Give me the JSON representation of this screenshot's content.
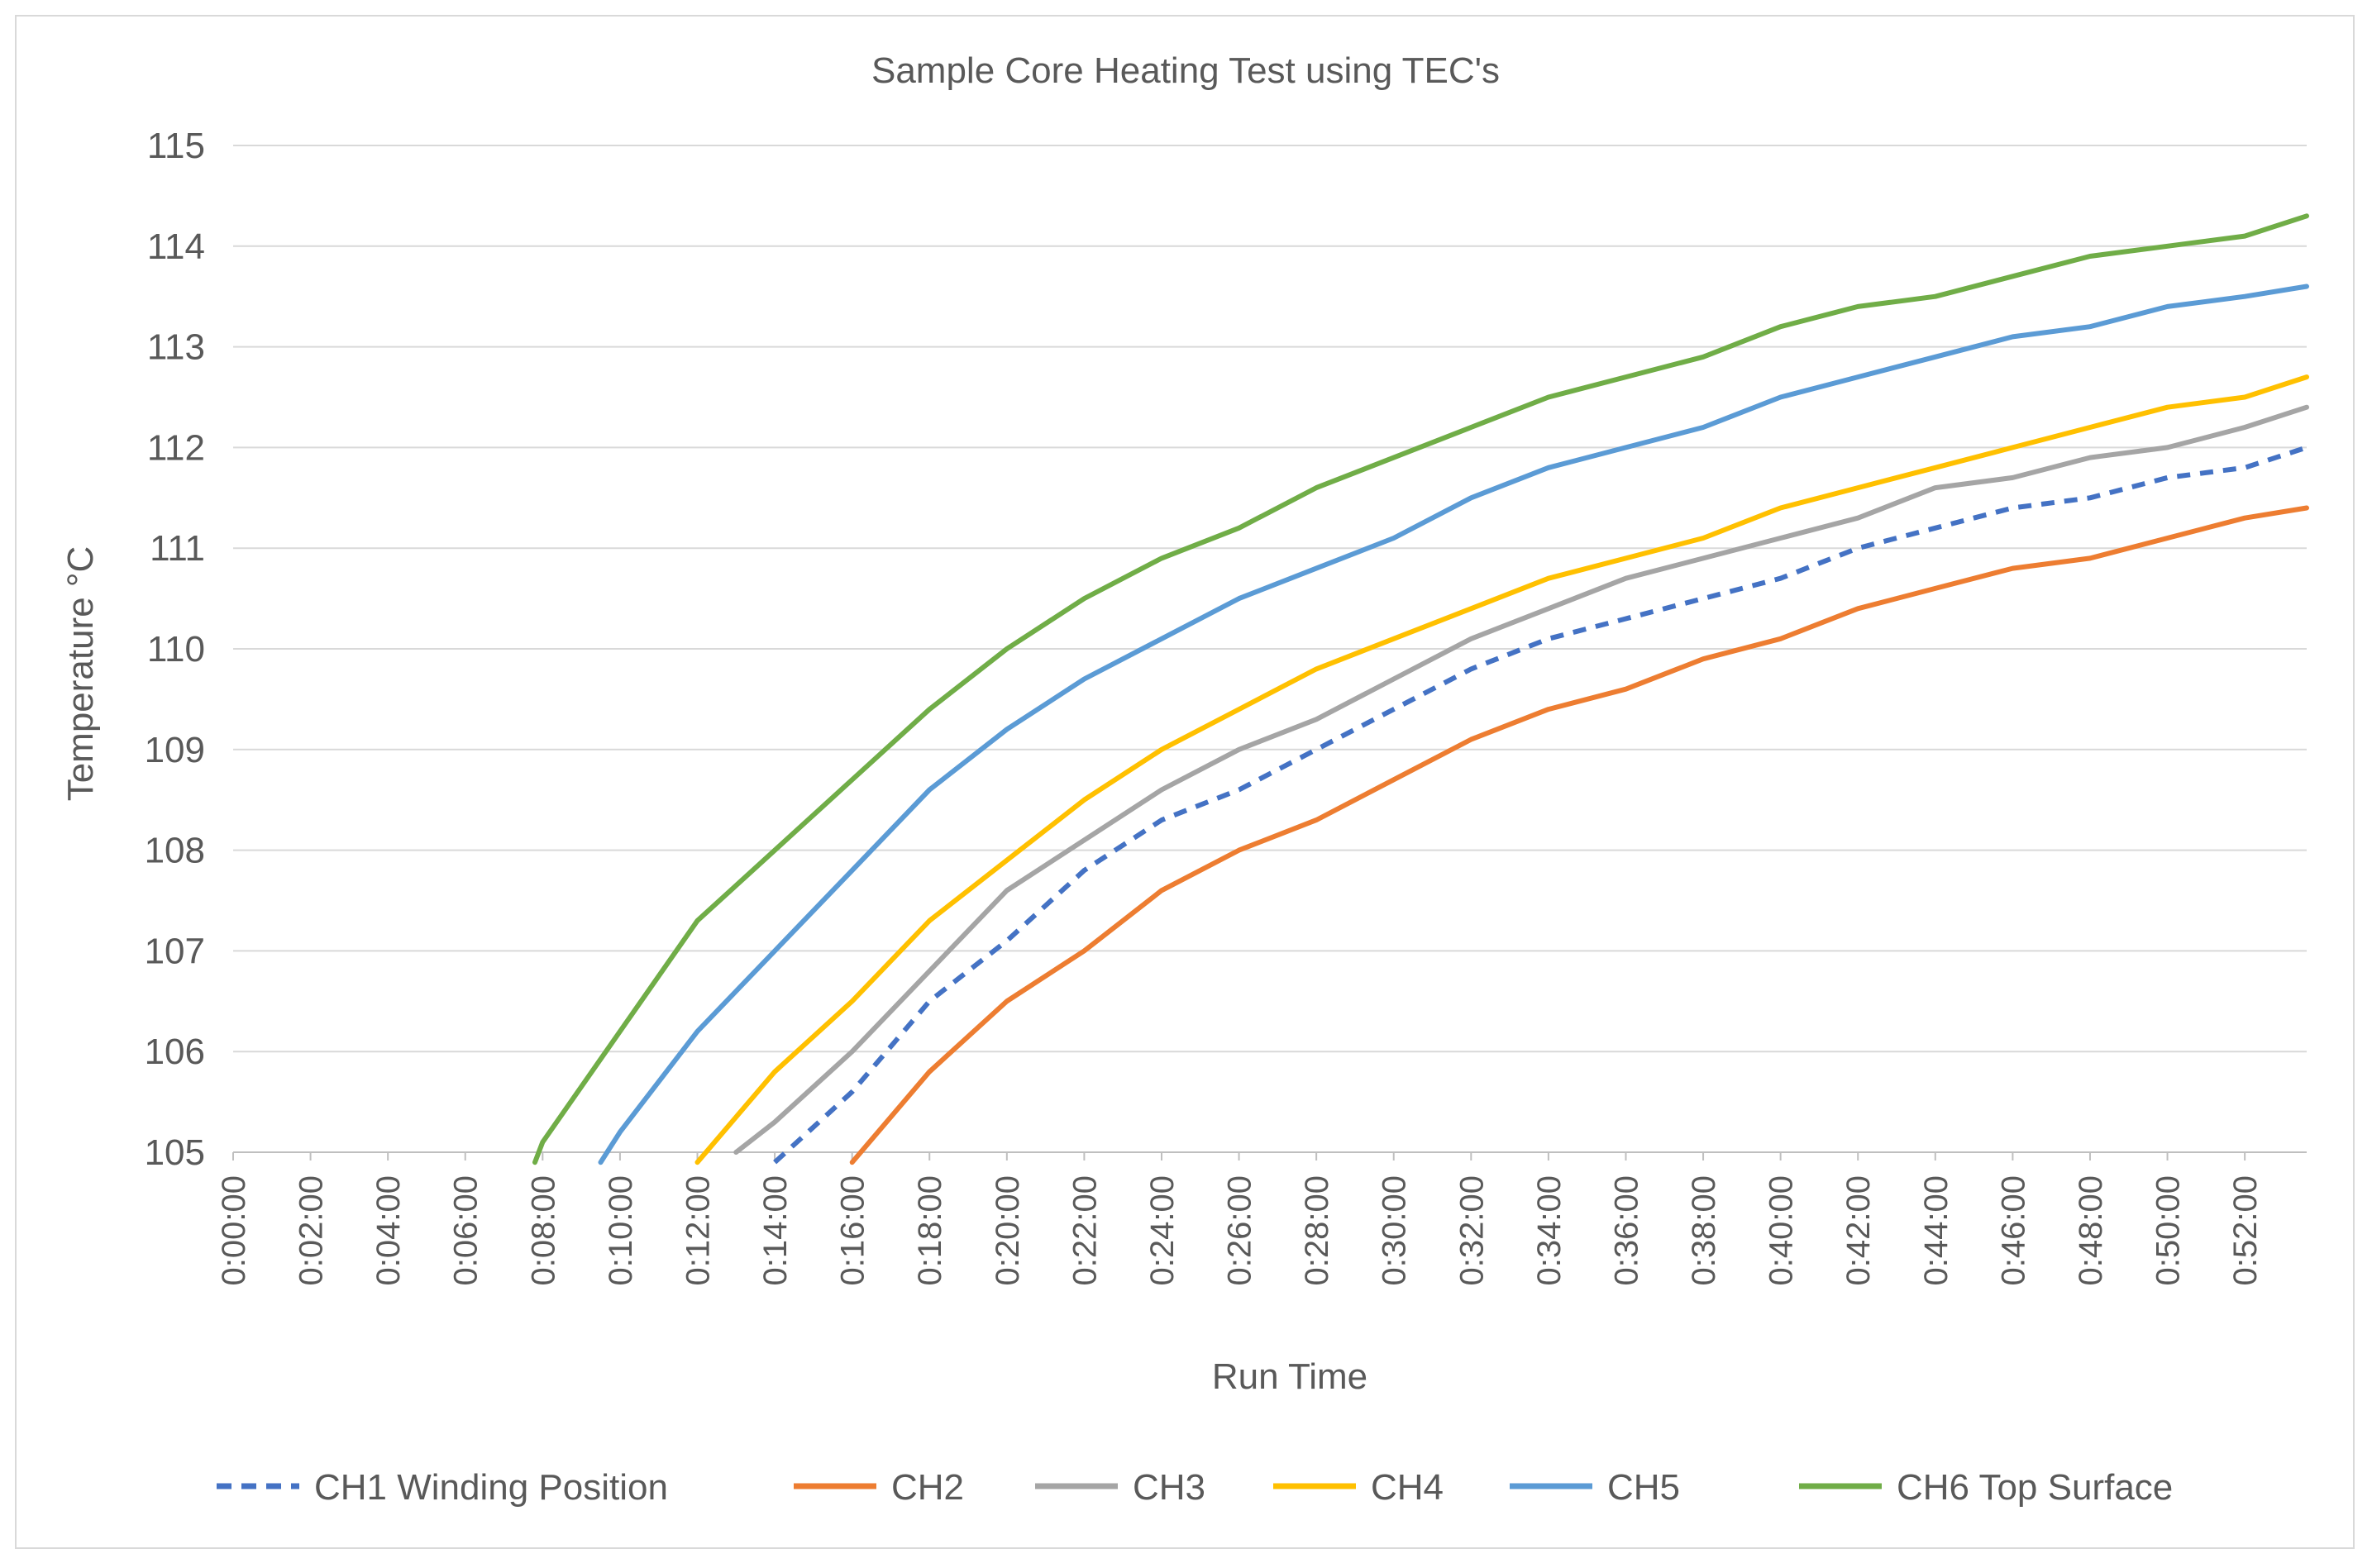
{
  "chart_data": {
    "type": "line",
    "title": "Sample Core Heating Test using TEC's",
    "xlabel": "Run Time",
    "ylabel": "Temperature °C",
    "ylim": [
      105,
      115
    ],
    "yticks": [
      "105",
      "106",
      "107",
      "108",
      "109",
      "110",
      "111",
      "112",
      "113",
      "114",
      "115"
    ],
    "xlim_minutes": [
      0,
      53.6
    ],
    "xticks": [
      "0:00:00",
      "0:02:00",
      "0:04:00",
      "0:06:00",
      "0:08:00",
      "0:10:00",
      "0:12:00",
      "0:14:00",
      "0:16:00",
      "0:18:00",
      "0:20:00",
      "0:22:00",
      "0:24:00",
      "0:26:00",
      "0:28:00",
      "0:30:00",
      "0:32:00",
      "0:34:00",
      "0:36:00",
      "0:38:00",
      "0:40:00",
      "0:42:00",
      "0:44:00",
      "0:46:00",
      "0:48:00",
      "0:50:00",
      "0:52:00"
    ],
    "grid": "horizontal",
    "legend_position": "bottom",
    "series": [
      {
        "name": "CH1 Winding Position",
        "color": "#4472c4",
        "dashed": true,
        "x": [
          14,
          16,
          18,
          20,
          22,
          24,
          26,
          28,
          30,
          32,
          34,
          36,
          38,
          40,
          42,
          44,
          46,
          48,
          50,
          52,
          53.6
        ],
        "y": [
          104.9,
          105.6,
          106.5,
          107.1,
          107.8,
          108.3,
          108.6,
          109.0,
          109.4,
          109.8,
          110.1,
          110.3,
          110.5,
          110.7,
          111.0,
          111.2,
          111.4,
          111.5,
          111.7,
          111.8,
          112.0
        ]
      },
      {
        "name": "CH2",
        "color": "#ed7d31",
        "dashed": false,
        "x": [
          16,
          18,
          20,
          22,
          24,
          26,
          28,
          30,
          32,
          34,
          36,
          38,
          40,
          42,
          44,
          46,
          48,
          50,
          52,
          53.6
        ],
        "y": [
          104.9,
          105.8,
          106.5,
          107.0,
          107.6,
          108.0,
          108.3,
          108.7,
          109.1,
          109.4,
          109.6,
          109.9,
          110.1,
          110.4,
          110.6,
          110.8,
          110.9,
          111.1,
          111.3,
          111.4
        ]
      },
      {
        "name": "CH3",
        "color": "#a5a5a5",
        "dashed": false,
        "x": [
          13,
          14,
          16,
          18,
          20,
          22,
          24,
          26,
          28,
          30,
          32,
          34,
          36,
          38,
          40,
          42,
          44,
          46,
          48,
          50,
          52,
          53.6
        ],
        "y": [
          105.0,
          105.3,
          106.0,
          106.8,
          107.6,
          108.1,
          108.6,
          109.0,
          109.3,
          109.7,
          110.1,
          110.4,
          110.7,
          110.9,
          111.1,
          111.3,
          111.6,
          111.7,
          111.9,
          112.0,
          112.2,
          112.4
        ]
      },
      {
        "name": "CH4",
        "color": "#ffc000",
        "dashed": false,
        "x": [
          12,
          14,
          16,
          18,
          20,
          22,
          24,
          26,
          28,
          30,
          32,
          34,
          36,
          38,
          40,
          42,
          44,
          46,
          48,
          50,
          52,
          53.6
        ],
        "y": [
          104.9,
          105.8,
          106.5,
          107.3,
          107.9,
          108.5,
          109.0,
          109.4,
          109.8,
          110.1,
          110.4,
          110.7,
          110.9,
          111.1,
          111.4,
          111.6,
          111.8,
          112.0,
          112.2,
          112.4,
          112.5,
          112.7
        ]
      },
      {
        "name": "CH5",
        "color": "#5b9bd5",
        "dashed": false,
        "x": [
          9.5,
          10,
          12,
          14,
          16,
          18,
          20,
          22,
          24,
          26,
          28,
          30,
          32,
          34,
          36,
          38,
          40,
          42,
          44,
          46,
          48,
          50,
          52,
          53.6
        ],
        "y": [
          104.9,
          105.2,
          106.2,
          107.0,
          107.8,
          108.6,
          109.2,
          109.7,
          110.1,
          110.5,
          110.8,
          111.1,
          111.5,
          111.8,
          112.0,
          112.2,
          112.5,
          112.7,
          112.9,
          113.1,
          113.2,
          113.4,
          113.5,
          113.6
        ]
      },
      {
        "name": "CH6 Top Surface",
        "color": "#70ad47",
        "dashed": false,
        "x": [
          7.8,
          8,
          10,
          12,
          14,
          16,
          18,
          20,
          22,
          24,
          26,
          28,
          30,
          32,
          34,
          36,
          38,
          40,
          42,
          44,
          46,
          48,
          50,
          52,
          53.6
        ],
        "y": [
          104.9,
          105.1,
          106.2,
          107.3,
          108.0,
          108.7,
          109.4,
          110.0,
          110.5,
          110.9,
          111.2,
          111.6,
          111.9,
          112.2,
          112.5,
          112.7,
          112.9,
          113.2,
          113.4,
          113.5,
          113.7,
          113.9,
          114.0,
          114.1,
          114.3
        ]
      }
    ]
  }
}
